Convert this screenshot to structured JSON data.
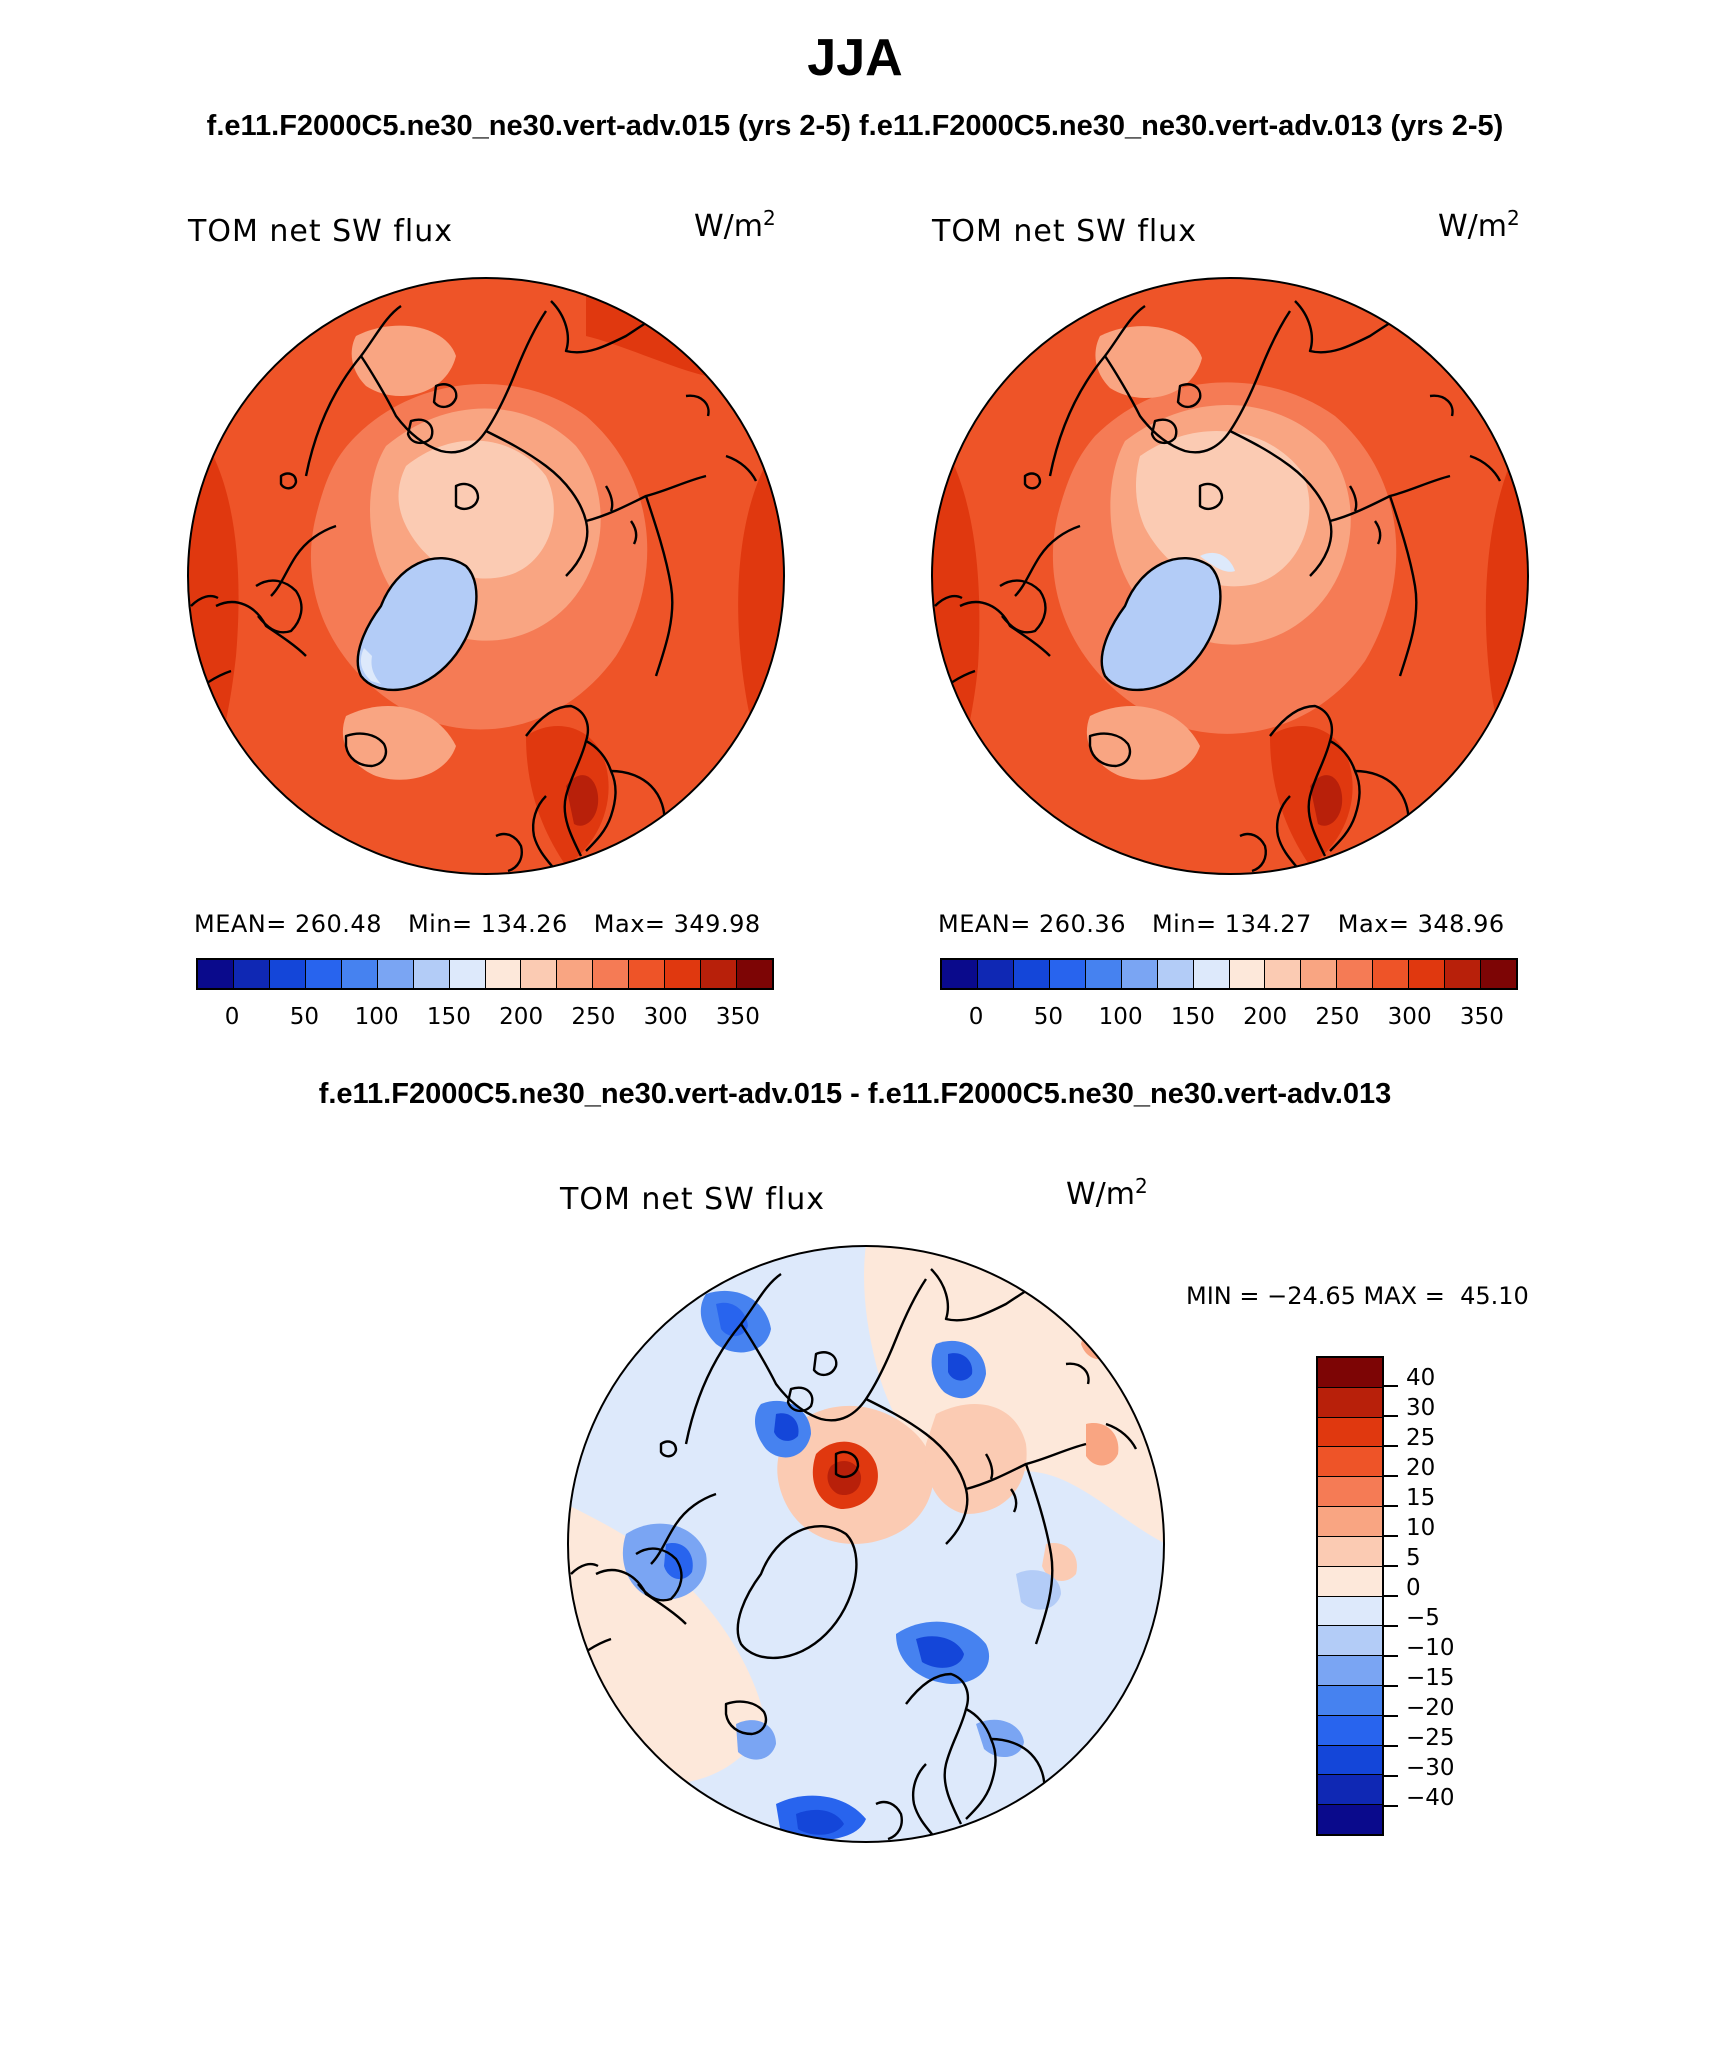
{
  "title": "JJA",
  "subtitle_top": "f.e11.F2000C5.ne30_ne30.vert-adv.015 (yrs 2-5) f.e11.F2000C5.ne30_ne30.vert-adv.013 (yrs 2-5)",
  "subtitle_diff": "f.e11.F2000C5.ne30_ne30.vert-adv.015 - f.e11.F2000C5.ne30_ne30.vert-adv.013",
  "panels": [
    {
      "label": "TOM net SW flux",
      "units_base": "W/m",
      "units_exp": "2",
      "mean": "MEAN= 260.48",
      "min": "Min= 134.26",
      "max": "Max= 349.98"
    },
    {
      "label": "TOM net SW flux",
      "units_base": "W/m",
      "units_exp": "2",
      "mean": "MEAN= 260.36",
      "min": "Min= 134.27",
      "max": "Max= 348.96"
    }
  ],
  "diff_panel": {
    "label": "TOM net SW flux",
    "units_base": "W/m",
    "units_exp": "2",
    "minmax": "MIN = −24.65 MAX =  45.10"
  },
  "chart_data": [
    {
      "type": "heatmap",
      "title": "TOM net SW flux",
      "units": "W/m^2",
      "projection": "north polar stereographic",
      "stats": {
        "mean": 260.48,
        "min": 134.26,
        "max": 349.98
      },
      "colorbar_ticks": [
        "0",
        "50",
        "100",
        "150",
        "200",
        "250",
        "300",
        "350"
      ],
      "levels": [
        0,
        25,
        50,
        75,
        100,
        125,
        150,
        175,
        200,
        225,
        250,
        275,
        300,
        325,
        350
      ]
    },
    {
      "type": "heatmap",
      "title": "TOM net SW flux",
      "units": "W/m^2",
      "projection": "north polar stereographic",
      "stats": {
        "mean": 260.36,
        "min": 134.27,
        "max": 348.96
      },
      "colorbar_ticks": [
        "0",
        "50",
        "100",
        "150",
        "200",
        "250",
        "300",
        "350"
      ],
      "levels": [
        0,
        25,
        50,
        75,
        100,
        125,
        150,
        175,
        200,
        225,
        250,
        275,
        300,
        325,
        350
      ]
    },
    {
      "type": "heatmap",
      "title": "TOM net SW flux (difference)",
      "units": "W/m^2",
      "projection": "north polar stereographic",
      "stats": {
        "min": -24.65,
        "max": 45.1
      },
      "colorbar_ticks": [
        "40",
        "30",
        "25",
        "20",
        "15",
        "10",
        "5",
        "0",
        "−5",
        "−10",
        "−15",
        "−20",
        "−25",
        "−30",
        "−40"
      ],
      "levels": [
        -40,
        -30,
        -25,
        -20,
        -15,
        -10,
        -5,
        0,
        5,
        10,
        15,
        20,
        25,
        30,
        40
      ]
    }
  ],
  "colors": {
    "abs_scale": [
      "#0a0a8c",
      "#0f28b4",
      "#1446d9",
      "#2864ee",
      "#4682f0",
      "#7aa5f3",
      "#b3ccf7",
      "#dde9fb",
      "#fde8da",
      "#fbcbb3",
      "#f9a582",
      "#f57b55",
      "#ee5428",
      "#e0380f",
      "#b8200a",
      "#7d0505"
    ],
    "diff_scale": [
      "#7d0505",
      "#b8200a",
      "#e0380f",
      "#ee5428",
      "#f57b55",
      "#f9a582",
      "#fbcbb3",
      "#fde8da",
      "#dde9fb",
      "#b3ccf7",
      "#7aa5f3",
      "#4682f0",
      "#2864ee",
      "#1446d9",
      "#0f28b4",
      "#0a0a8c"
    ]
  }
}
